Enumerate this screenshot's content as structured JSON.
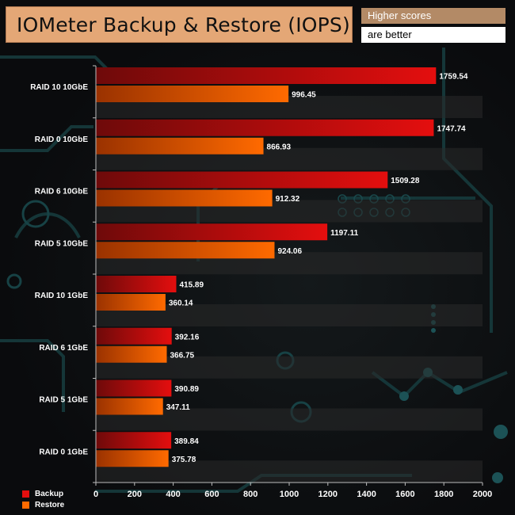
{
  "title": "IOMeter Backup & Restore (IOPS)",
  "note_top": "Higher scores",
  "note_bottom": "are better",
  "colors": {
    "backup": "#e40e0e",
    "backup_dark": "#6e0a0a",
    "restore": "#ff6a00",
    "restore_dark": "#9a3200",
    "title_bg": "#e4a776",
    "note_bg": "#b38a66"
  },
  "chart_data": {
    "type": "bar",
    "orientation": "horizontal",
    "categories": [
      "RAID 10 10GbE",
      "RAID 0 10GbE",
      "RAID 6 10GbE",
      "RAID 5 10GbE",
      "RAID 10 1GbE",
      "RAID 6 1GbE",
      "RAID 5 1GbE",
      "RAID 0 1GbE"
    ],
    "series": [
      {
        "name": "Backup",
        "values": [
          1759.54,
          1747.74,
          1509.28,
          1197.11,
          415.89,
          392.16,
          390.89,
          389.84
        ]
      },
      {
        "name": "Restore",
        "values": [
          996.45,
          866.93,
          912.32,
          924.06,
          360.14,
          366.75,
          347.11,
          375.78
        ]
      }
    ],
    "value_labels": {
      "Backup": [
        "1759.54",
        "1747.74",
        "1509.28",
        "1197.11",
        "415.89",
        "392.16",
        "390.89",
        "389.84"
      ],
      "Restore": [
        "996.45",
        "866.93",
        "912.32",
        "924.06",
        "360.14",
        "366.75",
        "347.11",
        "375.78"
      ]
    },
    "xticks": [
      "0",
      "200",
      "400",
      "600",
      "800",
      "1000",
      "1200",
      "1400",
      "1600",
      "1800",
      "2000"
    ],
    "xlim": [
      0,
      2000
    ],
    "grid": false,
    "legend_position": "bottom-left"
  }
}
